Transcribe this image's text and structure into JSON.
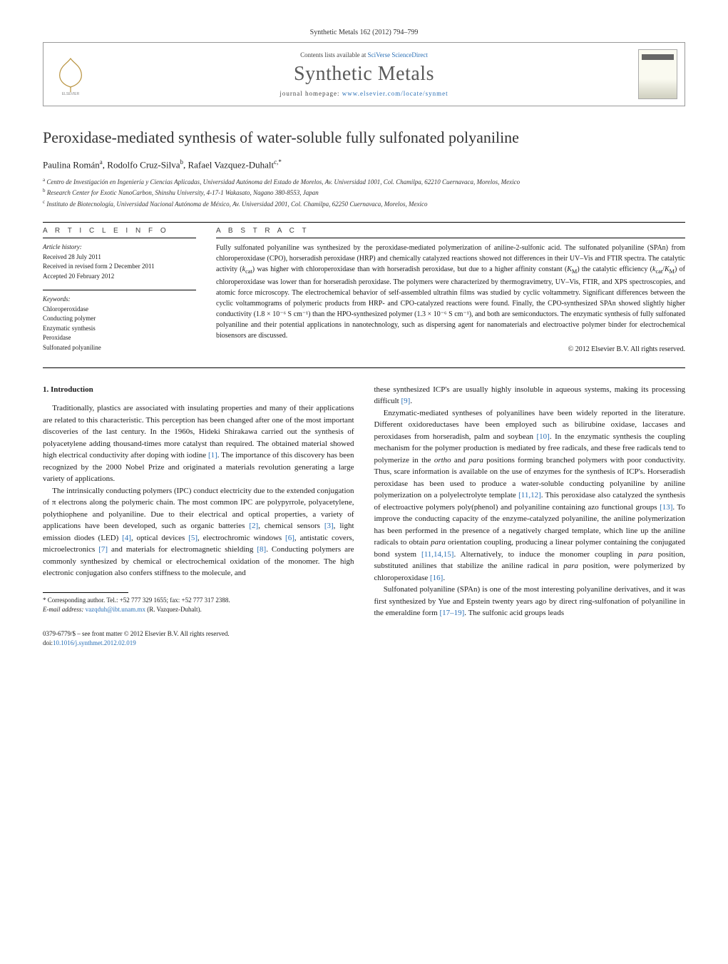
{
  "header": {
    "citation": "Synthetic Metals 162 (2012) 794–799",
    "contents_prefix": "Contents lists available at ",
    "contents_link": "SciVerse ScienceDirect",
    "journal_title": "Synthetic Metals",
    "homepage_prefix": "journal homepage: ",
    "homepage_url": "www.elsevier.com/locate/synmet"
  },
  "title": "Peroxidase-mediated synthesis of water-soluble fully sulfonated polyaniline",
  "authors_line": "Paulina Román",
  "authors": [
    {
      "name": "Paulina Román",
      "mark": "a"
    },
    {
      "name": "Rodolfo Cruz-Silva",
      "mark": "b"
    },
    {
      "name": "Rafael Vazquez-Duhalt",
      "mark": "c,*"
    }
  ],
  "affiliations": [
    {
      "mark": "a",
      "text": "Centro de Investigación en Ingeniería y Ciencias Aplicadas, Universidad Autónoma del Estado de Morelos, Av. Universidad 1001, Col. Chamilpa, 62210 Cuernavaca, Morelos, Mexico"
    },
    {
      "mark": "b",
      "text": "Research Center for Exotic NanoCarbon, Shinshu University, 4-17-1 Wakasato, Nagano 380-8553, Japan"
    },
    {
      "mark": "c",
      "text": "Instituto de Biotecnología, Universidad Nacional Autónoma de México, Av. Universidad 2001, Col. Chamilpa, 62250 Cuernavaca, Morelos, Mexico"
    }
  ],
  "info": {
    "heading": "A R T I C L E   I N F O",
    "history_label": "Article history:",
    "received": "Received 28 July 2011",
    "revised": "Received in revised form 2 December 2011",
    "accepted": "Accepted 20 February 2012",
    "keywords_label": "Keywords:",
    "keywords": [
      "Chloroperoxidase",
      "Conducting polymer",
      "Enzymatic synthesis",
      "Peroxidase",
      "Sulfonated polyaniline"
    ]
  },
  "abstract": {
    "heading": "A B S T R A C T",
    "text": "Fully sulfonated polyaniline was synthesized by the peroxidase-mediated polymerization of aniline-2-sulfonic acid. The sulfonated polyaniline (SPAn) from chloroperoxidase (CPO), horseradish peroxidase (HRP) and chemically catalyzed reactions showed not differences in their UV–Vis and FTIR spectra. The catalytic activity (k_cat) was higher with chloroperoxidase than with horseradish peroxidase, but due to a higher affinity constant (K_M) the catalytic efficiency (k_cat/K_M) of chloroperoxidase was lower than for horseradish peroxidase. The polymers were characterized by thermogravimetry, UV–Vis, FTIR, and XPS spectroscopies, and atomic force microscopy. The electrochemical behavior of self-assembled ultrathin films was studied by cyclic voltammetry. Significant differences between the cyclic voltammograms of polymeric products from HRP- and CPO-catalyzed reactions were found. Finally, the CPO-synthesized SPAn showed slightly higher conductivity (1.8 × 10⁻⁶ S cm⁻¹) than the HPO-synthesized polymer (1.3 × 10⁻⁶ S cm⁻¹), and both are semiconductors. The enzymatic synthesis of fully sulfonated polyaniline and their potential applications in nanotechnology, such as dispersing agent for nanomaterials and electroactive polymer binder for electrochemical biosensors are discussed.",
    "copyright": "© 2012 Elsevier B.V. All rights reserved."
  },
  "body": {
    "section_heading": "1.  Introduction",
    "p1": "Traditionally, plastics are associated with insulating properties and many of their applications are related to this characteristic. This perception has been changed after one of the most important discoveries of the last century. In the 1960s, Hideki Shirakawa carried out the synthesis of polyacetylene adding thousand-times more catalyst than required. The obtained material showed high electrical conductivity after doping with iodine [1]. The importance of this discovery has been recognized by the 2000 Nobel Prize and originated a materials revolution generating a large variety of applications.",
    "p2": "The intrinsically conducting polymers (IPC) conduct electricity due to the extended conjugation of π electrons along the polymeric chain. The most common IPC are polypyrrole, polyacetylene, polythiophene and polyaniline. Due to their electrical and optical properties, a variety of applications have been developed, such as organic batteries [2], chemical sensors [3], light emission diodes (LED) [4], optical devices [5], electrochromic windows [6], antistatic covers, microelectronics [7] and materials for electromagnetic shielding [8]. Conducting polymers are commonly synthesized by chemical or electrochemical oxidation of the monomer. The high electronic conjugation also confers stiffness to the molecule, and",
    "p3": "these synthesized ICP's are usually highly insoluble in aqueous systems, making its processing difficult [9].",
    "p4": "Enzymatic-mediated syntheses of polyanilines have been widely reported in the literature. Different oxidoreductases have been employed such as bilirubine oxidase, laccases and peroxidases from horseradish, palm and soybean [10]. In the enzymatic synthesis the coupling mechanism for the polymer production is mediated by free radicals, and these free radicals tend to polymerize in the ortho and para positions forming branched polymers with poor conductivity. Thus, scare information is available on the use of enzymes for the synthesis of ICP's. Horseradish peroxidase has been used to produce a water-soluble conducting polyaniline by aniline polymerization on a polyelectrolyte template [11,12]. This peroxidase also catalyzed the synthesis of electroactive polymers poly(phenol) and polyaniline containing azo functional groups [13]. To improve the conducting capacity of the enzyme-catalyzed polyaniline, the aniline polymerization has been performed in the presence of a negatively charged template, which line up the aniline radicals to obtain para orientation coupling, producing a linear polymer containing the conjugated bond system [11,14,15]. Alternatively, to induce the monomer coupling in para position, substituted anilines that stabilize the aniline radical in para position, were polymerized by chloroperoxidase [16].",
    "p5": "Sulfonated polyaniline (SPAn) is one of the most interesting polyaniline derivatives, and it was first synthesized by Yue and Epstein twenty years ago by direct ring-sulfonation of polyaniline in the emeraldine form [17–19]. The sulfonic acid groups leads"
  },
  "footnote": {
    "corr_label": "* Corresponding author. Tel.: +52 777 329 1655; fax: +52 777 317 2388.",
    "email_label": "E-mail address: ",
    "email": "vazqduh@ibt.unam.mx",
    "email_suffix": " (R. Vazquez-Duhalt)."
  },
  "bottom": {
    "issn_line": "0379-6779/$ – see front matter © 2012 Elsevier B.V. All rights reserved.",
    "doi_prefix": "doi:",
    "doi": "10.1016/j.synthmet.2012.02.019"
  },
  "colors": {
    "link": "#2a6fb5",
    "text": "#1a1a1a",
    "heading_gray": "#5a5a5a",
    "border": "#999999"
  },
  "typography": {
    "body_pt": 11,
    "abstract_pt": 10,
    "title_pt": 22,
    "journal_title_pt": 28,
    "footnote_pt": 9
  }
}
